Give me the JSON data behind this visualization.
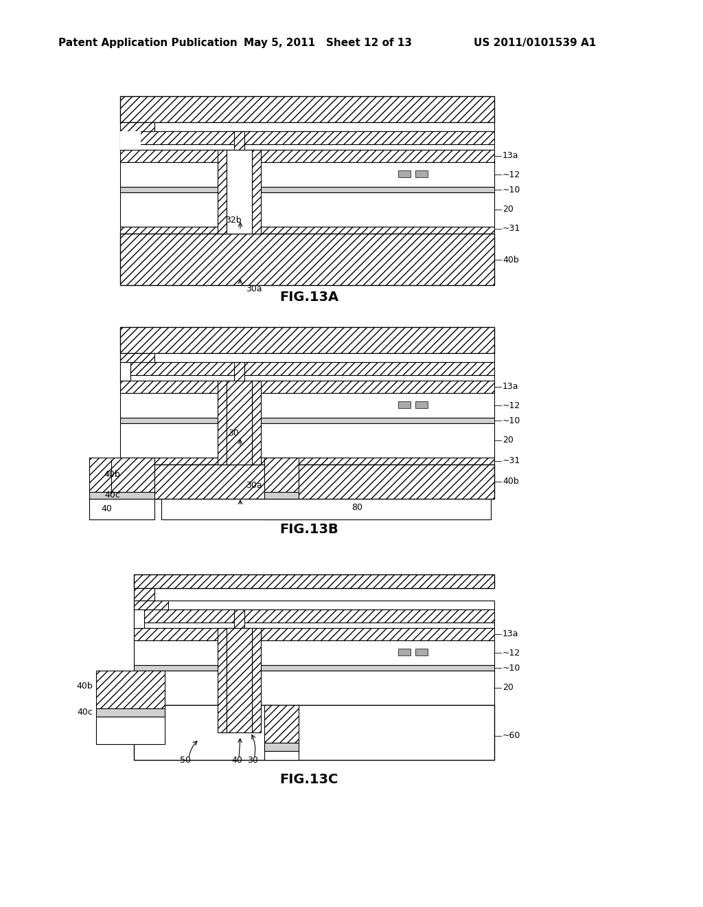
{
  "title_left": "Patent Application Publication",
  "title_center": "May 5, 2011   Sheet 12 of 13",
  "title_right": "US 2011/0101539 A1",
  "fig_labels": [
    "FIG.13A",
    "FIG.13B",
    "FIG.13C"
  ],
  "background_color": "#ffffff",
  "font_size_header": 11,
  "font_size_label": 9,
  "font_size_fig": 14
}
